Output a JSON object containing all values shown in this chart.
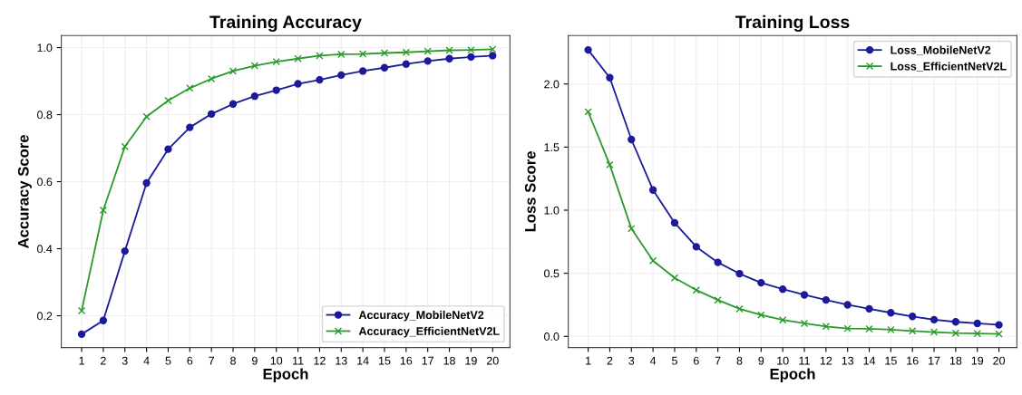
{
  "chart_data": [
    {
      "type": "line",
      "title": "Training Accuracy",
      "xlabel": "Epoch",
      "ylabel": "Accuracy Score",
      "x": [
        1,
        2,
        3,
        4,
        5,
        6,
        7,
        8,
        9,
        10,
        11,
        12,
        13,
        14,
        15,
        16,
        17,
        18,
        19,
        20
      ],
      "series": [
        {
          "name": "Accuracy_MobileNetV2",
          "color": "#1a1a9a",
          "marker": "circle",
          "values": [
            0.145,
            0.186,
            0.393,
            0.596,
            0.697,
            0.762,
            0.802,
            0.832,
            0.855,
            0.873,
            0.892,
            0.904,
            0.918,
            0.93,
            0.94,
            0.951,
            0.96,
            0.967,
            0.972,
            0.976
          ]
        },
        {
          "name": "Accuracy_EfficientNetV2L",
          "color": "#2a9a2a",
          "marker": "cross",
          "values": [
            0.215,
            0.515,
            0.705,
            0.794,
            0.842,
            0.879,
            0.907,
            0.93,
            0.946,
            0.958,
            0.967,
            0.976,
            0.98,
            0.981,
            0.984,
            0.986,
            0.989,
            0.992,
            0.993,
            0.995
          ]
        }
      ],
      "xlim": [
        0.06,
        20.8
      ],
      "xticks": [
        1,
        2,
        3,
        4,
        5,
        6,
        7,
        8,
        9,
        10,
        11,
        12,
        13,
        14,
        15,
        16,
        17,
        18,
        19,
        20
      ],
      "ylim": [
        0.105,
        1.036
      ],
      "yticks": [
        0.2,
        0.4,
        0.6,
        0.8,
        {
          "value": 1,
          "label": "1.0"
        }
      ],
      "grid": true,
      "legend": "bottom right"
    },
    {
      "type": "line",
      "title": "Training Loss",
      "xlabel": "Epoch",
      "ylabel": "Loss Score",
      "x": [
        1,
        2,
        3,
        4,
        5,
        6,
        7,
        8,
        9,
        10,
        11,
        12,
        13,
        14,
        15,
        16,
        17,
        18,
        19,
        20
      ],
      "series": [
        {
          "name": "Loss_MobileNetV2",
          "color": "#1a1a9a",
          "marker": "circle",
          "values": [
            2.27,
            2.05,
            1.56,
            1.16,
            0.9,
            0.71,
            0.586,
            0.497,
            0.425,
            0.374,
            0.329,
            0.288,
            0.25,
            0.218,
            0.187,
            0.158,
            0.132,
            0.115,
            0.103,
            0.091
          ]
        },
        {
          "name": "Loss_EfficientNetV2L",
          "color": "#2a9a2a",
          "marker": "cross",
          "values": [
            1.78,
            1.36,
            0.854,
            0.6,
            0.463,
            0.367,
            0.288,
            0.218,
            0.17,
            0.13,
            0.103,
            0.079,
            0.062,
            0.06,
            0.053,
            0.043,
            0.034,
            0.026,
            0.022,
            0.019
          ]
        }
      ],
      "xlim": [
        0.08,
        20.83
      ],
      "xticks": [
        1,
        2,
        3,
        4,
        5,
        6,
        7,
        8,
        9,
        10,
        11,
        12,
        13,
        14,
        15,
        16,
        17,
        18,
        19,
        20
      ],
      "ylim": [
        -0.089,
        2.384
      ],
      "yticks": [
        {
          "value": 0,
          "label": "0.0"
        },
        0.5,
        {
          "value": 1,
          "label": "1.0"
        },
        1.5,
        {
          "value": 2,
          "label": "2.0"
        }
      ],
      "grid": true,
      "legend": "top right"
    }
  ]
}
